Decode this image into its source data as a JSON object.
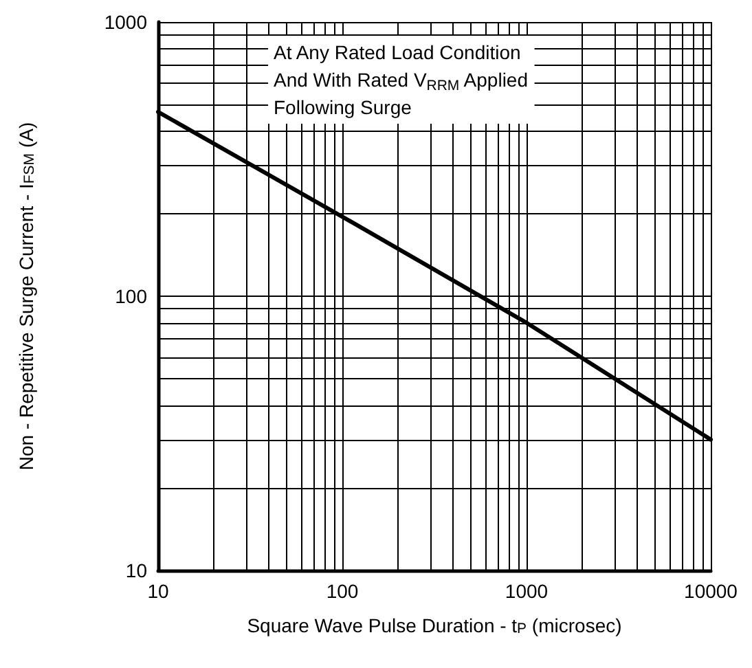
{
  "chart_data": {
    "type": "line",
    "xlabel": "Square Wave Pulse Duration - t$_{P}$ (microsec)",
    "ylabel": "Non - Repetitive Surge Current - I$_{FSM}$ (A)",
    "annotations": [
      "At Any Rated Load Condition\nAnd With Rated V$_{RRM}$ Applied\nFollowing Surge"
    ],
    "log": "xy",
    "grid": true,
    "marker": "none",
    "line_style": "solid",
    "x": [
      10,
      100,
      1000,
      10000
    ],
    "series": [
      {
        "color": "#000000",
        "values": [
          470,
          195,
          80,
          30
        ]
      }
    ],
    "xlim": [
      10,
      10000
    ],
    "ylim": [
      10,
      1000
    ],
    "xticks": [
      10,
      {
        "value": 20,
        "label": null
      },
      {
        "value": 30,
        "label": null
      },
      {
        "value": 40,
        "label": null
      },
      {
        "value": 50,
        "label": null
      },
      {
        "value": 60,
        "label": null
      },
      {
        "value": 70,
        "label": null
      },
      {
        "value": 80,
        "label": null
      },
      {
        "value": 90,
        "label": null
      },
      100,
      {
        "value": 200,
        "label": null
      },
      {
        "value": 300,
        "label": null
      },
      {
        "value": 400,
        "label": null
      },
      {
        "value": 500,
        "label": null
      },
      {
        "value": 600,
        "label": null
      },
      {
        "value": 700,
        "label": null
      },
      {
        "value": 800,
        "label": null
      },
      {
        "value": 900,
        "label": null
      },
      1000,
      {
        "value": 2000,
        "label": null
      },
      {
        "value": 3000,
        "label": null
      },
      {
        "value": 4000,
        "label": null
      },
      {
        "value": 5000,
        "label": null
      },
      {
        "value": 6000,
        "label": null
      },
      {
        "value": 7000,
        "label": null
      },
      {
        "value": 8000,
        "label": null
      },
      {
        "value": 9000,
        "label": null
      },
      10000
    ],
    "yticks": [
      10,
      {
        "value": 20,
        "label": null
      },
      {
        "value": 30,
        "label": null
      },
      {
        "value": 40,
        "label": null
      },
      {
        "value": 50,
        "label": null
      },
      {
        "value": 60,
        "label": null
      },
      {
        "value": 70,
        "label": null
      },
      {
        "value": 80,
        "label": null
      },
      {
        "value": 90,
        "label": null
      },
      100,
      {
        "value": 200,
        "label": null
      },
      {
        "value": 300,
        "label": null
      },
      {
        "value": 400,
        "label": null
      },
      {
        "value": 500,
        "label": null
      },
      {
        "value": 600,
        "label": null
      },
      {
        "value": 700,
        "label": null
      },
      {
        "value": 800,
        "label": null
      },
      {
        "value": 900,
        "label": null
      },
      1000
    ]
  }
}
